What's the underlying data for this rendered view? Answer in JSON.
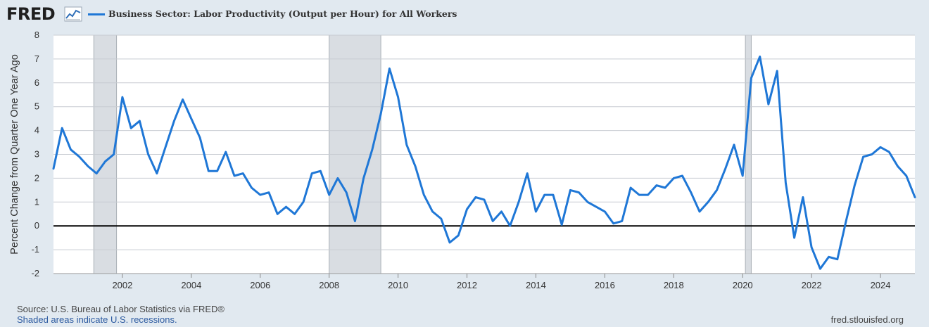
{
  "header": {
    "logo_text": "FRED",
    "logo_icon": "line-chart-icon",
    "legend_label": "Business Sector: Labor Productivity (Output per Hour) for All Workers"
  },
  "footer": {
    "source": "Source: U.S. Bureau of Labor Statistics via FRED®",
    "note": "Shaded areas indicate U.S. recessions.",
    "url": "fred.stlouisfed.org"
  },
  "colors": {
    "line": "#1f77d6",
    "recession": "#d9dde2",
    "plot_background": "#ffffff",
    "page_background": "#e1e9f0",
    "grid": "#c8ccd2",
    "zero_line": "#000000"
  },
  "chart_data": {
    "type": "line",
    "ylabel": "Percent Change from Quarter One Year Ago",
    "xlabel": "",
    "title": "",
    "ylim": [
      -2,
      8
    ],
    "xlim": [
      2000.0,
      2025.0
    ],
    "yticks": [
      -2,
      -1,
      0,
      1,
      2,
      3,
      4,
      5,
      6,
      7,
      8
    ],
    "ytick_labels": [
      "-2",
      "-1",
      "0",
      "1",
      "2",
      "3",
      "4",
      "5",
      "6",
      "7",
      "8"
    ],
    "xticks": [
      2002,
      2004,
      2006,
      2008,
      2010,
      2012,
      2014,
      2016,
      2018,
      2020,
      2022,
      2024
    ],
    "xtick_labels": [
      "2002",
      "2004",
      "2006",
      "2008",
      "2010",
      "2012",
      "2014",
      "2016",
      "2018",
      "2020",
      "2022",
      "2024"
    ],
    "grid": "horizontal",
    "recessions": [
      [
        2001.17,
        2001.83
      ],
      [
        2008.0,
        2009.5
      ],
      [
        2020.08,
        2020.25
      ]
    ],
    "series": [
      {
        "name": "Business Sector: Labor Productivity (Output per Hour) for All Workers",
        "x": [
          2000.0,
          2000.25,
          2000.5,
          2000.75,
          2001.0,
          2001.25,
          2001.5,
          2001.75,
          2002.0,
          2002.25,
          2002.5,
          2002.75,
          2003.0,
          2003.25,
          2003.5,
          2003.75,
          2004.0,
          2004.25,
          2004.5,
          2004.75,
          2005.0,
          2005.25,
          2005.5,
          2005.75,
          2006.0,
          2006.25,
          2006.5,
          2006.75,
          2007.0,
          2007.25,
          2007.5,
          2007.75,
          2008.0,
          2008.25,
          2008.5,
          2008.75,
          2009.0,
          2009.25,
          2009.5,
          2009.75,
          2010.0,
          2010.25,
          2010.5,
          2010.75,
          2011.0,
          2011.25,
          2011.5,
          2011.75,
          2012.0,
          2012.25,
          2012.5,
          2012.75,
          2013.0,
          2013.25,
          2013.5,
          2013.75,
          2014.0,
          2014.25,
          2014.5,
          2014.75,
          2015.0,
          2015.25,
          2015.5,
          2015.75,
          2016.0,
          2016.25,
          2016.5,
          2016.75,
          2017.0,
          2017.25,
          2017.5,
          2017.75,
          2018.0,
          2018.25,
          2018.5,
          2018.75,
          2019.0,
          2019.25,
          2019.5,
          2019.75,
          2020.0,
          2020.25,
          2020.5,
          2020.75,
          2021.0,
          2021.25,
          2021.5,
          2021.75,
          2022.0,
          2022.25,
          2022.5,
          2022.75,
          2023.0,
          2023.25,
          2023.5,
          2023.75,
          2024.0,
          2024.25,
          2024.5,
          2024.75,
          2025.0
        ],
        "values": [
          2.4,
          4.1,
          3.2,
          2.9,
          2.5,
          2.2,
          2.7,
          3.0,
          5.4,
          4.1,
          4.4,
          3.0,
          2.2,
          3.3,
          4.4,
          5.3,
          4.5,
          3.7,
          2.3,
          2.3,
          3.1,
          2.1,
          2.2,
          1.6,
          1.3,
          1.4,
          0.5,
          0.8,
          0.5,
          1.0,
          2.2,
          2.3,
          1.3,
          2.0,
          1.4,
          0.2,
          2.0,
          3.2,
          4.7,
          6.6,
          5.4,
          3.4,
          2.5,
          1.3,
          0.6,
          0.3,
          -0.7,
          -0.4,
          0.7,
          1.2,
          1.1,
          0.2,
          0.6,
          0.0,
          1.0,
          2.2,
          0.6,
          1.3,
          1.3,
          0.05,
          1.5,
          1.4,
          1.0,
          0.8,
          0.6,
          0.1,
          0.2,
          1.6,
          1.3,
          1.3,
          1.7,
          1.6,
          2.0,
          2.1,
          1.4,
          0.6,
          1.0,
          1.5,
          2.4,
          3.4,
          2.1,
          6.2,
          7.1,
          5.1,
          6.5,
          1.8,
          -0.5,
          1.2,
          -0.9,
          -1.8,
          -1.3,
          -1.4,
          0.2,
          1.7,
          2.9,
          3.0,
          3.3,
          3.1,
          2.5,
          2.1,
          1.2
        ]
      }
    ]
  }
}
